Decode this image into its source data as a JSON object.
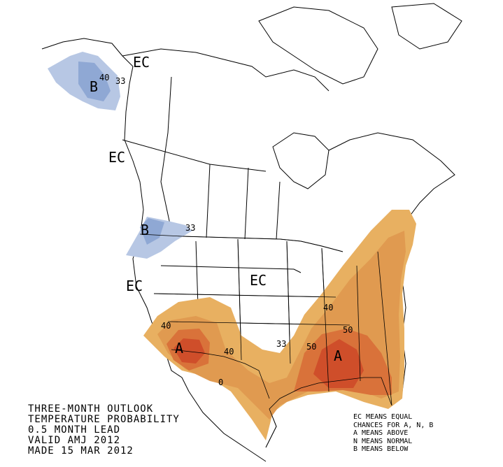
{
  "title_lines": [
    "THREE-MONTH OUTLOOK",
    "TEMPERATURE PROBABILITY",
    "0.5 MONTH LEAD",
    "VALID AMJ 2012",
    "MADE 15 MAR 2012"
  ],
  "legend_lines": [
    "EC MEANS EQUAL",
    "CHANCES FOR A, N, B",
    "A MEANS ABOVE",
    "N MEANS NORMAL",
    "B MEANS BELOW"
  ],
  "map_labels": {
    "ec_alaska": "EC",
    "ec_canada_west": "EC",
    "ec_west": "EC",
    "ec_central": "EC",
    "b_alaska": "B",
    "b_northwest": "B",
    "a_southwest": "A",
    "a_southeast": "A"
  },
  "contour_labels": {
    "alaska_40": "40",
    "alaska_33": "33",
    "nw_33": "33",
    "sw_40": "40",
    "nm_40": "40",
    "tx_33": "33",
    "tx_0": "0",
    "se_40": "40",
    "se_50a": "50",
    "se_50b": "50"
  },
  "colors": {
    "above_33": "#e8b061",
    "above_40": "#e09a50",
    "above_50": "#d9723a",
    "above_60": "#cf4e2a",
    "below_33": "#b7c7e4",
    "below_40": "#8fa8d4",
    "boundary": "#000000",
    "background": "#ffffff"
  }
}
